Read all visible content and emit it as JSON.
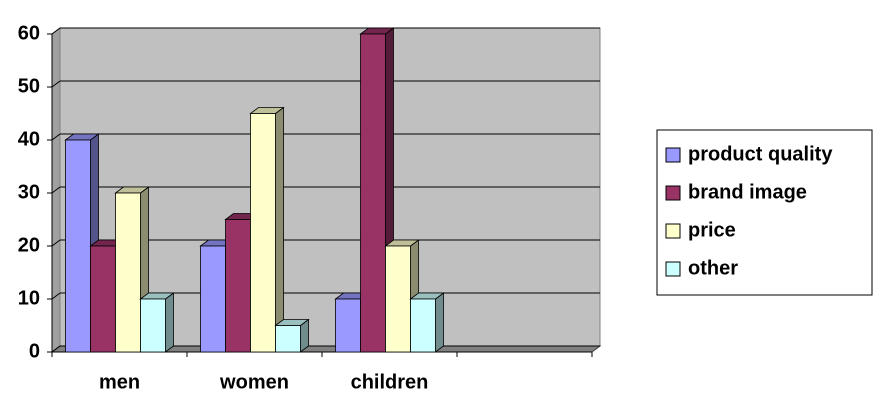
{
  "chart_data": {
    "type": "bar",
    "categories": [
      "men",
      "women",
      "children"
    ],
    "series": [
      {
        "name": "product quality",
        "color": "#9999ff",
        "values": [
          40,
          20,
          10
        ]
      },
      {
        "name": "brand image",
        "color": "#993366",
        "values": [
          20,
          25,
          60
        ]
      },
      {
        "name": "price",
        "color": "#ffffcc",
        "values": [
          30,
          45,
          20
        ]
      },
      {
        "name": "other",
        "color": "#ccffff",
        "values": [
          10,
          5,
          10
        ]
      }
    ],
    "ylim": [
      0,
      60
    ],
    "yticks": [
      0,
      10,
      20,
      30,
      40,
      50,
      60
    ],
    "grid": true,
    "legend": "right"
  }
}
